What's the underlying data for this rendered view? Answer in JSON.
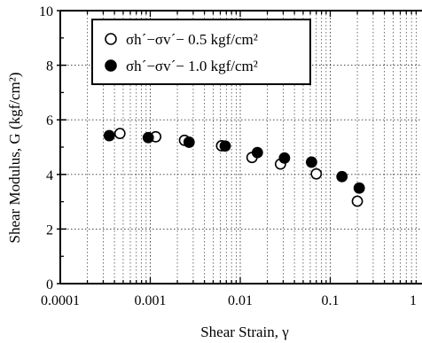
{
  "chart_data": {
    "type": "scatter",
    "xlabel": "Shear Strain, γ",
    "ylabel": "Shear Modulus, G (kgf/cm²)",
    "xscale": "log",
    "xlim": [
      0.0001,
      1
    ],
    "ylim": [
      0,
      10
    ],
    "x_ticks": [
      0.0001,
      0.001,
      0.01,
      0.1,
      1
    ],
    "x_tick_labels": [
      "0.0001",
      "0.001",
      "0.01",
      "0.1",
      "1"
    ],
    "y_ticks": [
      0,
      2,
      4,
      6,
      8,
      10
    ],
    "y_tick_labels": [
      "0",
      "2",
      "4",
      "6",
      "8",
      "10"
    ],
    "grid": "dotted, major and minor on x, major on y",
    "legend_position": "top-center",
    "series": [
      {
        "name": "σh´−σv´− 0.5 kgf/cm²",
        "marker": "open-circle",
        "x": [
          0.00046,
          0.00115,
          0.0024,
          0.0062,
          0.0135,
          0.028,
          0.07,
          0.2
        ],
        "y": [
          5.5,
          5.38,
          5.25,
          5.05,
          4.62,
          4.38,
          4.02,
          3.02
        ]
      },
      {
        "name": "σh´−σv´− 1.0 kgf/cm²",
        "marker": "filled-circle",
        "x": [
          0.00035,
          0.00095,
          0.0027,
          0.0068,
          0.0155,
          0.031,
          0.062,
          0.135,
          0.21
        ],
        "y": [
          5.42,
          5.35,
          5.18,
          5.04,
          4.8,
          4.6,
          4.45,
          3.92,
          3.5
        ]
      }
    ]
  }
}
